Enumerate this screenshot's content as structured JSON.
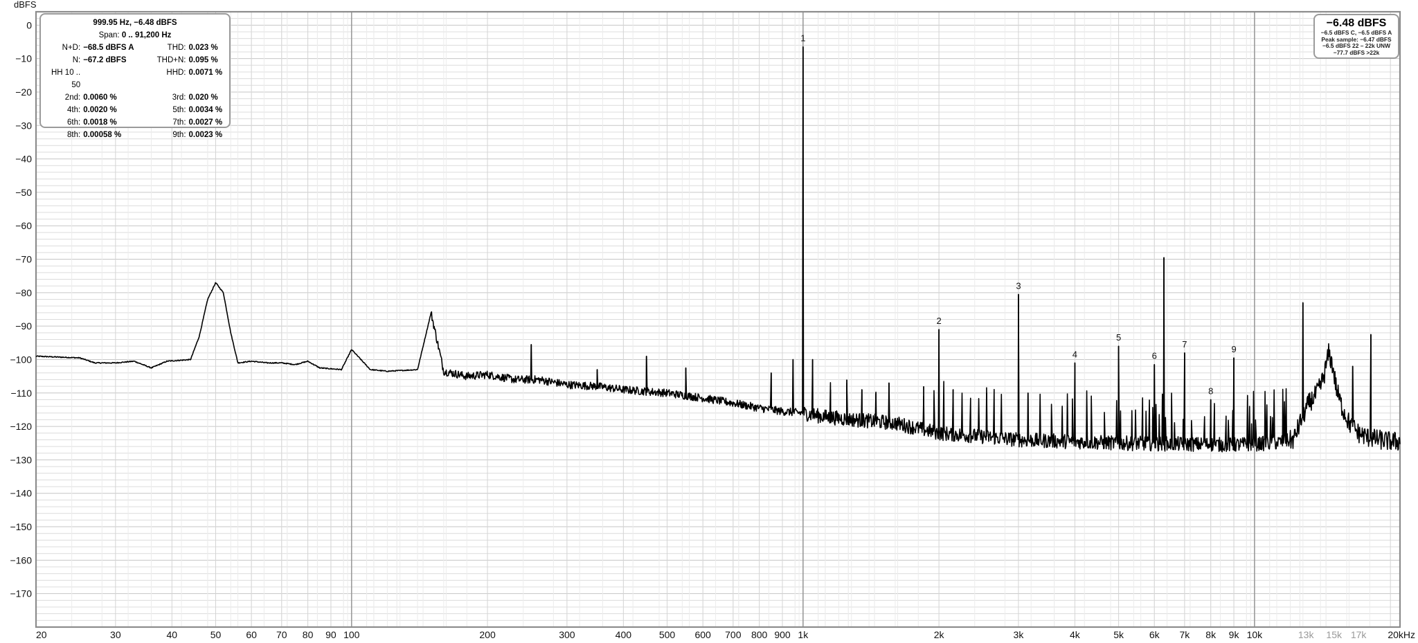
{
  "chart_data": {
    "type": "line",
    "ylabel": "dBFS",
    "y_unit_label": "dBFS",
    "x_unit_label": "20kHz",
    "x_scale": "log",
    "xlim": [
      20,
      21000
    ],
    "ylim": [
      -180,
      4
    ],
    "grid": true,
    "y_ticks": [
      0,
      -10,
      -20,
      -30,
      -40,
      -50,
      -60,
      -70,
      -80,
      -90,
      -100,
      -110,
      -120,
      -130,
      -140,
      -150,
      -160,
      -170
    ],
    "y_tick_labels": [
      "0",
      "−10",
      "−20",
      "−30",
      "−40",
      "−50",
      "−60",
      "−70",
      "−80",
      "−90",
      "−100",
      "−110",
      "−120",
      "−130",
      "−140",
      "−150",
      "−160",
      "−170"
    ],
    "x_ticks": [
      {
        "f": 20,
        "label": "20",
        "dim": false
      },
      {
        "f": 30,
        "label": "30",
        "dim": false
      },
      {
        "f": 40,
        "label": "40",
        "dim": false
      },
      {
        "f": 50,
        "label": "50",
        "dim": false
      },
      {
        "f": 60,
        "label": "60",
        "dim": false
      },
      {
        "f": 70,
        "label": "70",
        "dim": false
      },
      {
        "f": 80,
        "label": "80",
        "dim": false
      },
      {
        "f": 90,
        "label": "90",
        "dim": false
      },
      {
        "f": 100,
        "label": "100",
        "dim": false
      },
      {
        "f": 200,
        "label": "200",
        "dim": false
      },
      {
        "f": 300,
        "label": "300",
        "dim": false
      },
      {
        "f": 400,
        "label": "400",
        "dim": false
      },
      {
        "f": 500,
        "label": "500",
        "dim": false
      },
      {
        "f": 600,
        "label": "600",
        "dim": false
      },
      {
        "f": 700,
        "label": "700",
        "dim": false
      },
      {
        "f": 800,
        "label": "800",
        "dim": false
      },
      {
        "f": 900,
        "label": "900",
        "dim": false
      },
      {
        "f": 1000,
        "label": "1k",
        "dim": false
      },
      {
        "f": 2000,
        "label": "2k",
        "dim": false
      },
      {
        "f": 3000,
        "label": "3k",
        "dim": false
      },
      {
        "f": 4000,
        "label": "4k",
        "dim": false
      },
      {
        "f": 5000,
        "label": "5k",
        "dim": false
      },
      {
        "f": 6000,
        "label": "6k",
        "dim": false
      },
      {
        "f": 7000,
        "label": "7k",
        "dim": false
      },
      {
        "f": 8000,
        "label": "8k",
        "dim": false
      },
      {
        "f": 9000,
        "label": "9k",
        "dim": false
      },
      {
        "f": 10000,
        "label": "10k",
        "dim": false
      },
      {
        "f": 13000,
        "label": "13k",
        "dim": true
      },
      {
        "f": 15000,
        "label": "15k",
        "dim": true
      },
      {
        "f": 17000,
        "label": "17k",
        "dim": true
      }
    ],
    "harmonics": [
      {
        "label": "1",
        "f": 1000,
        "db": -6.5
      },
      {
        "label": "2",
        "f": 2000,
        "db": -91
      },
      {
        "label": "3",
        "f": 3000,
        "db": -80.5
      },
      {
        "label": "4",
        "f": 4000,
        "db": -101
      },
      {
        "label": "5",
        "f": 5000,
        "db": -96
      },
      {
        "label": "6",
        "f": 6000,
        "db": -101.5
      },
      {
        "label": "7",
        "f": 7000,
        "db": -98
      },
      {
        "label": "8",
        "f": 8000,
        "db": -112
      },
      {
        "label": "9",
        "f": 9000,
        "db": -99.5
      }
    ],
    "spurs": [
      {
        "f": 150,
        "db": -86
      },
      {
        "f": 250,
        "db": -95.5
      },
      {
        "f": 350,
        "db": -103
      },
      {
        "f": 450,
        "db": -99
      },
      {
        "f": 550,
        "db": -102.5
      },
      {
        "f": 850,
        "db": -104
      },
      {
        "f": 950,
        "db": -100
      },
      {
        "f": 1050,
        "db": -100
      },
      {
        "f": 1150,
        "db": -109
      },
      {
        "f": 1250,
        "db": -106
      },
      {
        "f": 1350,
        "db": -109
      },
      {
        "f": 1450,
        "db": -110
      },
      {
        "f": 1550,
        "db": -107
      },
      {
        "f": 1850,
        "db": -108
      },
      {
        "f": 2150,
        "db": -109
      },
      {
        "f": 2550,
        "db": -110
      },
      {
        "f": 3150,
        "db": -110
      },
      {
        "f": 6300,
        "db": -69.5
      },
      {
        "f": 12800,
        "db": -83
      },
      {
        "f": 18100,
        "db": -92.5
      },
      {
        "f": 16500,
        "db": -102
      }
    ],
    "curve": [
      [
        20,
        -99
      ],
      [
        25,
        -99.5
      ],
      [
        27,
        -101
      ],
      [
        30,
        -101
      ],
      [
        33,
        -100.5
      ],
      [
        36,
        -102.5
      ],
      [
        39,
        -100.5
      ],
      [
        42,
        -100.2
      ],
      [
        44,
        -100
      ],
      [
        46,
        -93
      ],
      [
        48,
        -82
      ],
      [
        50,
        -77
      ],
      [
        52,
        -80
      ],
      [
        54,
        -92
      ],
      [
        56,
        -101
      ],
      [
        60,
        -100.5
      ],
      [
        65,
        -101
      ],
      [
        70,
        -101
      ],
      [
        75,
        -101.5
      ],
      [
        80,
        -100.5
      ],
      [
        85,
        -102.5
      ],
      [
        95,
        -103
      ],
      [
        100,
        -97
      ],
      [
        110,
        -103
      ],
      [
        120,
        -103.5
      ],
      [
        140,
        -103
      ],
      [
        150,
        -86
      ],
      [
        160,
        -103.5
      ],
      [
        180,
        -105
      ],
      [
        200,
        -104.5
      ],
      [
        230,
        -106
      ],
      [
        260,
        -106
      ],
      [
        300,
        -107.5
      ],
      [
        350,
        -108
      ],
      [
        400,
        -109
      ],
      [
        500,
        -110
      ],
      [
        600,
        -111.5
      ],
      [
        700,
        -113
      ],
      [
        800,
        -114.5
      ],
      [
        900,
        -115.5
      ],
      [
        1000,
        -116
      ],
      [
        1100,
        -117
      ],
      [
        1300,
        -118
      ],
      [
        1600,
        -119
      ],
      [
        2000,
        -122
      ],
      [
        2500,
        -123
      ],
      [
        3000,
        -124
      ],
      [
        5000,
        -125
      ],
      [
        9000,
        -125.5
      ],
      [
        11000,
        -125
      ],
      [
        12200,
        -124
      ],
      [
        12700,
        -118
      ],
      [
        13200,
        -113
      ],
      [
        13600,
        -111
      ],
      [
        14000,
        -108
      ],
      [
        14300,
        -104
      ],
      [
        14600,
        -98
      ],
      [
        14900,
        -102
      ],
      [
        15200,
        -109
      ],
      [
        15600,
        -114
      ],
      [
        16200,
        -119
      ],
      [
        17000,
        -122
      ],
      [
        18000,
        -123.5
      ],
      [
        19000,
        -124
      ],
      [
        20000,
        -124.5
      ],
      [
        21000,
        -124.5
      ]
    ]
  },
  "stats_box": {
    "title": "999.95 Hz, −6.48 dBFS",
    "span_label": "Span:",
    "span_value": "0 .. 91,200 Hz",
    "rows": [
      {
        "l_label": "N+D:",
        "l_value": "−68.5 dBFS A",
        "r_label": "THD:",
        "r_value": "0.023 %"
      },
      {
        "l_label": "N:",
        "l_value": "−67.2 dBFS",
        "r_label": "THD+N:",
        "r_value": "0.095 %"
      },
      {
        "l_label": "HH 10 .. 50",
        "l_value": "",
        "r_label": "HHD:",
        "r_value": "0.0071 %"
      },
      {
        "l_label": "2nd:",
        "l_value": "0.0060 %",
        "r_label": "3rd:",
        "r_value": "0.020 %"
      },
      {
        "l_label": "4th:",
        "l_value": "0.0020 %",
        "r_label": "5th:",
        "r_value": "0.0034 %"
      },
      {
        "l_label": "6th:",
        "l_value": "0.0018 %",
        "r_label": "7th:",
        "r_value": "0.0027 %"
      },
      {
        "l_label": "8th:",
        "l_value": "0.00058 %",
        "r_label": "9th:",
        "r_value": "0.0023 %"
      }
    ]
  },
  "level_box": {
    "main": "−6.48 dBFS",
    "line1": "−6.5 dBFS C, −6.5 dBFS A",
    "line2": "Peak sample: −6.47 dBFS",
    "line3": "−6.5 dBFS 22 – 22k UNW",
    "line4": "−77.7 dBFS >22k"
  },
  "colors": {
    "trace": "#000000",
    "grid_major": "#9a9a9a",
    "grid_minor": "#dcdcdc",
    "frame": "#8c8c8c"
  }
}
